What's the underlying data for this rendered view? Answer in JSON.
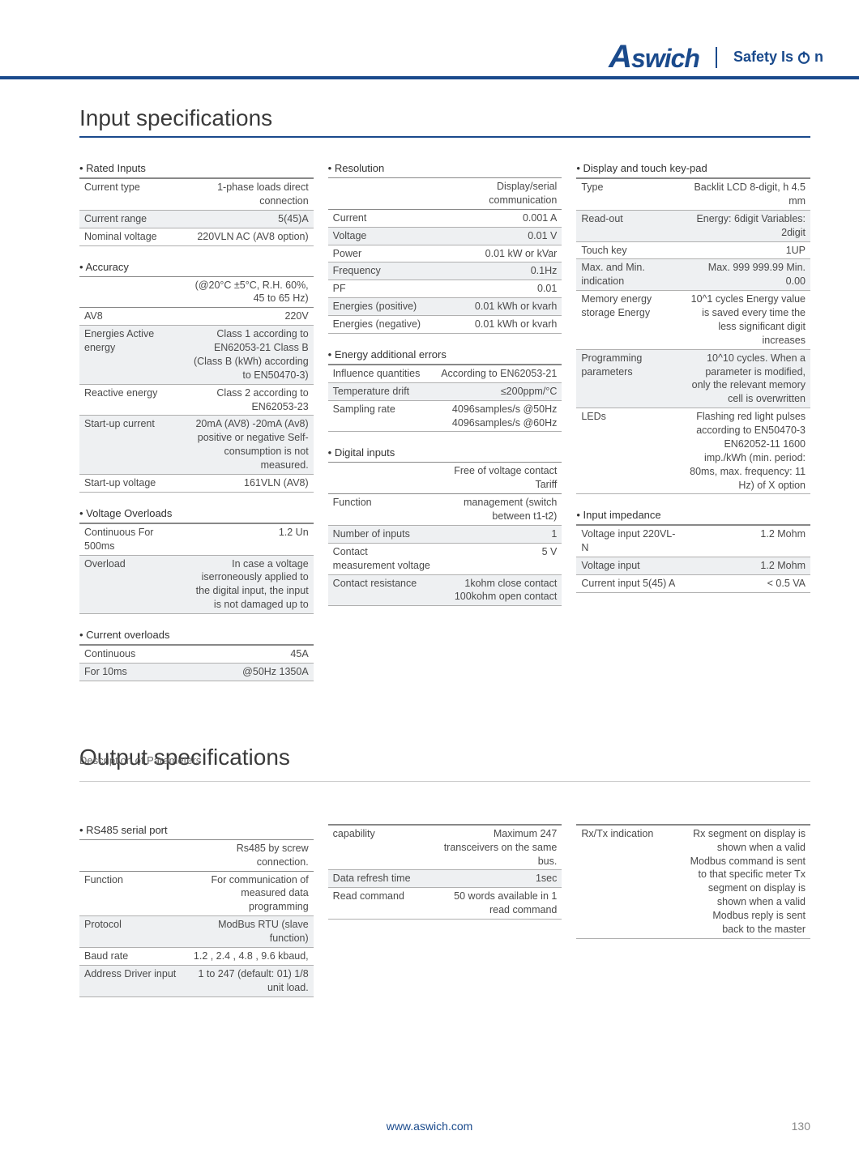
{
  "brand": {
    "name": "Aswich",
    "tagline": "Safety Is",
    "taglineSuffix": "n"
  },
  "footerUrl": "www.aswich.com",
  "pageNumber": "130",
  "sections": {
    "input": {
      "title": "Input specifications"
    },
    "output": {
      "title": "Output specifications",
      "subtitle": "Description of Parameters"
    }
  },
  "input": {
    "col1": [
      {
        "title": "Rated Inputs",
        "rows": [
          [
            "Current type",
            "1-phase loads direct connection"
          ],
          [
            "Current range",
            "5(45)A"
          ],
          [
            "Nominal voltage",
            "220VLN AC (AV8 option)"
          ]
        ]
      },
      {
        "title": "Accuracy",
        "headerRow": [
          "",
          "(@20°C ±5°C, R.H. 60%, 45 to 65 Hz)"
        ],
        "rows": [
          [
            "AV8",
            "220V"
          ],
          [
            "Energies Active energy",
            "Class 1 according to EN62053-21 Class B (Class B (kWh) according to EN50470-3)"
          ],
          [
            "Reactive energy",
            "Class 2 according to EN62053-23"
          ],
          [
            "Start-up current",
            "20mA (AV8) -20mA (Av8) positive or negative Self-consumption is not measured."
          ],
          [
            "Start-up voltage",
            "161VLN (AV8)"
          ]
        ]
      },
      {
        "title": "Voltage Overloads",
        "rows": [
          [
            "Continuous For 500ms",
            "1.2 Un"
          ],
          [
            "Overload",
            "In case a voltage iserroneously applied to the digital input, the input is not damaged up to"
          ]
        ]
      },
      {
        "title": "Current overloads",
        "rows": [
          [
            "Continuous",
            "45A"
          ],
          [
            "For 10ms",
            "@50Hz 1350A"
          ]
        ]
      }
    ],
    "col2": [
      {
        "title": "Resolution",
        "headerRow": [
          "",
          "Display/serial communication"
        ],
        "rows": [
          [
            "Current",
            "0.001 A"
          ],
          [
            "Voltage",
            "0.01 V"
          ],
          [
            "Power",
            "0.01 kW or kVar"
          ],
          [
            "Frequency",
            "0.1Hz"
          ],
          [
            "PF",
            "0.01"
          ],
          [
            "Energies (positive)",
            "0.01 kWh or kvarh"
          ],
          [
            "Energies (negative)",
            "0.01 kWh or kvarh"
          ]
        ]
      },
      {
        "title": "Energy additional errors",
        "rows": [
          [
            "Influence quantities",
            "According to EN62053-21"
          ],
          [
            "Temperature drift",
            "≤200ppm/°C"
          ],
          [
            "Sampling rate",
            "4096samples/s @50Hz 4096samples/s @60Hz"
          ]
        ]
      },
      {
        "title": "Digital inputs",
        "headerRow": [
          "",
          "Free of voltage contact Tariff"
        ],
        "rows": [
          [
            "Function",
            "management (switch between t1-t2)"
          ],
          [
            "Number of inputs",
            "1"
          ],
          [
            "Contact measurement voltage",
            "5 V"
          ],
          [
            "Contact resistance",
            "1kohm close contact 100kohm open contact"
          ]
        ]
      }
    ],
    "col3": [
      {
        "title": "Display and touch key-pad",
        "rows": [
          [
            "Type",
            "Backlit LCD 8-digit, h 4.5 mm"
          ],
          [
            "Read-out",
            "Energy: 6digit Variables: 2digit"
          ],
          [
            "Touch key",
            "1UP"
          ],
          [
            "Max. and Min. indication",
            "Max. 999 999.99 Min. 0.00"
          ],
          [
            "Memory energy storage Energy",
            "10^1 cycles Energy value is saved every time the less significant digit increases"
          ],
          [
            "Programming parameters",
            "10^10 cycles. When a parameter is modified, only the relevant memory cell is overwritten"
          ],
          [
            "LEDs",
            "Flashing red light pulses according to EN50470-3 EN62052-11 1600 imp./kWh (min. period: 80ms, max. frequency: 11 Hz) of X option"
          ]
        ]
      },
      {
        "title": "Input impedance",
        "rows": [
          [
            "Voltage input 220VL-N",
            "1.2 Mohm"
          ],
          [
            "Voltage input",
            "1.2 Mohm"
          ],
          [
            "Current input 5(45) A",
            "< 0.5 VA"
          ]
        ]
      }
    ]
  },
  "output": {
    "col1": [
      {
        "title": "RS485 serial port",
        "headerRow": [
          "",
          "Rs485 by screw connection."
        ],
        "rows": [
          [
            "Function",
            "For communication of measured data programming"
          ],
          [
            "Protocol",
            "ModBus RTU (slave function)"
          ],
          [
            "Baud rate",
            "1.2 , 2.4 , 4.8 , 9.6 kbaud,"
          ],
          [
            "Address Driver input",
            "1 to 247 (default: 01) 1/8 unit load."
          ]
        ]
      }
    ],
    "col2": [
      {
        "rows": [
          [
            "capability",
            "Maximum 247 transceivers on the same bus."
          ],
          [
            "Data refresh time",
            "1sec"
          ],
          [
            "Read command",
            "50 words available in 1 read command"
          ]
        ]
      }
    ],
    "col3": [
      {
        "rows": [
          [
            "Rx/Tx indication",
            "Rx segment on display is shown when a valid Modbus command is sent to that specific meter Tx segment on display is shown when a valid Modbus reply is sent back to the master"
          ]
        ]
      }
    ]
  }
}
